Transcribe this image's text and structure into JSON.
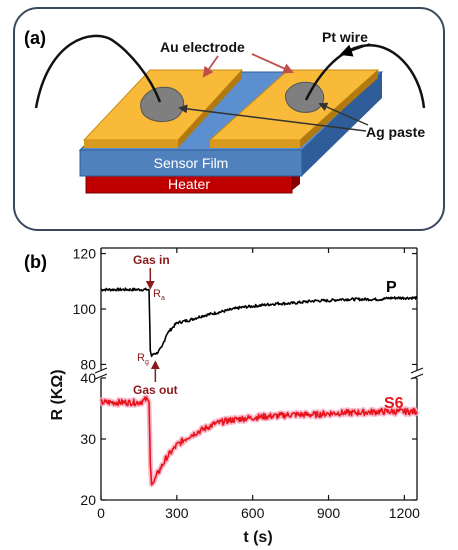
{
  "panel_a": {
    "letter": "(a)",
    "labels": {
      "au_electrode": "Au electrode",
      "pt_wire": "Pt wire",
      "ag_paste": "Ag paste",
      "sensor_film": "Sensor Film",
      "heater": "Heater"
    },
    "colors": {
      "electrode": "#F9B939",
      "film": "#4F81BD",
      "film_side": "#2E5D9A",
      "heater": "#C00000",
      "paste": "#7F7F7F",
      "wire": "#111111",
      "arrow_red": "#C0504D"
    }
  },
  "panel_b": {
    "letter": "(b)",
    "chart_data": {
      "type": "line",
      "xlabel": "t (s)",
      "ylabel": "R (KΩ)",
      "xlim": [
        0,
        1250
      ],
      "x_ticks": [
        0,
        300,
        600,
        900,
        1200
      ],
      "top_axis": {
        "ylim": [
          78,
          122
        ],
        "y_ticks": [
          80,
          100,
          120
        ],
        "series": {
          "name": "P",
          "color": "#000000",
          "x": [
            0,
            50,
            100,
            150,
            180,
            190,
            195,
            200,
            210,
            220,
            240,
            260,
            280,
            300,
            350,
            400,
            450,
            500,
            550,
            600,
            650,
            700,
            750,
            800,
            850,
            900,
            950,
            1000,
            1050,
            1100,
            1150,
            1200,
            1250
          ],
          "y": [
            107,
            107,
            107,
            107,
            107,
            107,
            85,
            83,
            84,
            84,
            86,
            91,
            93,
            95,
            96,
            97.5,
            98.5,
            99.5,
            100.5,
            101,
            101.5,
            102,
            102,
            102.5,
            103,
            103,
            103.5,
            103.5,
            103.5,
            103.5,
            104,
            104,
            104
          ]
        }
      },
      "bottom_axis": {
        "ylim": [
          20,
          40
        ],
        "y_ticks": [
          20,
          30,
          40
        ],
        "series": {
          "name": "S6",
          "color": "#E8141B",
          "x": [
            0,
            50,
            100,
            150,
            180,
            190,
            195,
            200,
            210,
            220,
            240,
            260,
            280,
            300,
            350,
            400,
            450,
            500,
            550,
            600,
            650,
            700,
            750,
            800,
            850,
            900,
            950,
            1000,
            1050,
            1100,
            1150,
            1200,
            1250
          ],
          "y": [
            36,
            36,
            36,
            36,
            36.5,
            36,
            26,
            23,
            23,
            24,
            25.5,
            27,
            28,
            29,
            30.5,
            31.5,
            32.5,
            33,
            33.3,
            33.5,
            33.7,
            33.8,
            34,
            34,
            34,
            34.2,
            34.3,
            34.3,
            34.4,
            34.5,
            34.5,
            34.5,
            34.5
          ]
        }
      },
      "annotations": {
        "gas_in": "Gas in",
        "gas_out": "Gas out",
        "ra": "R",
        "ra_sub": "a",
        "rg": "R",
        "rg_sub": "g",
        "gas_in_t": 195,
        "gas_out_t": 215,
        "arrow_color": "#8B1A1A"
      }
    }
  }
}
